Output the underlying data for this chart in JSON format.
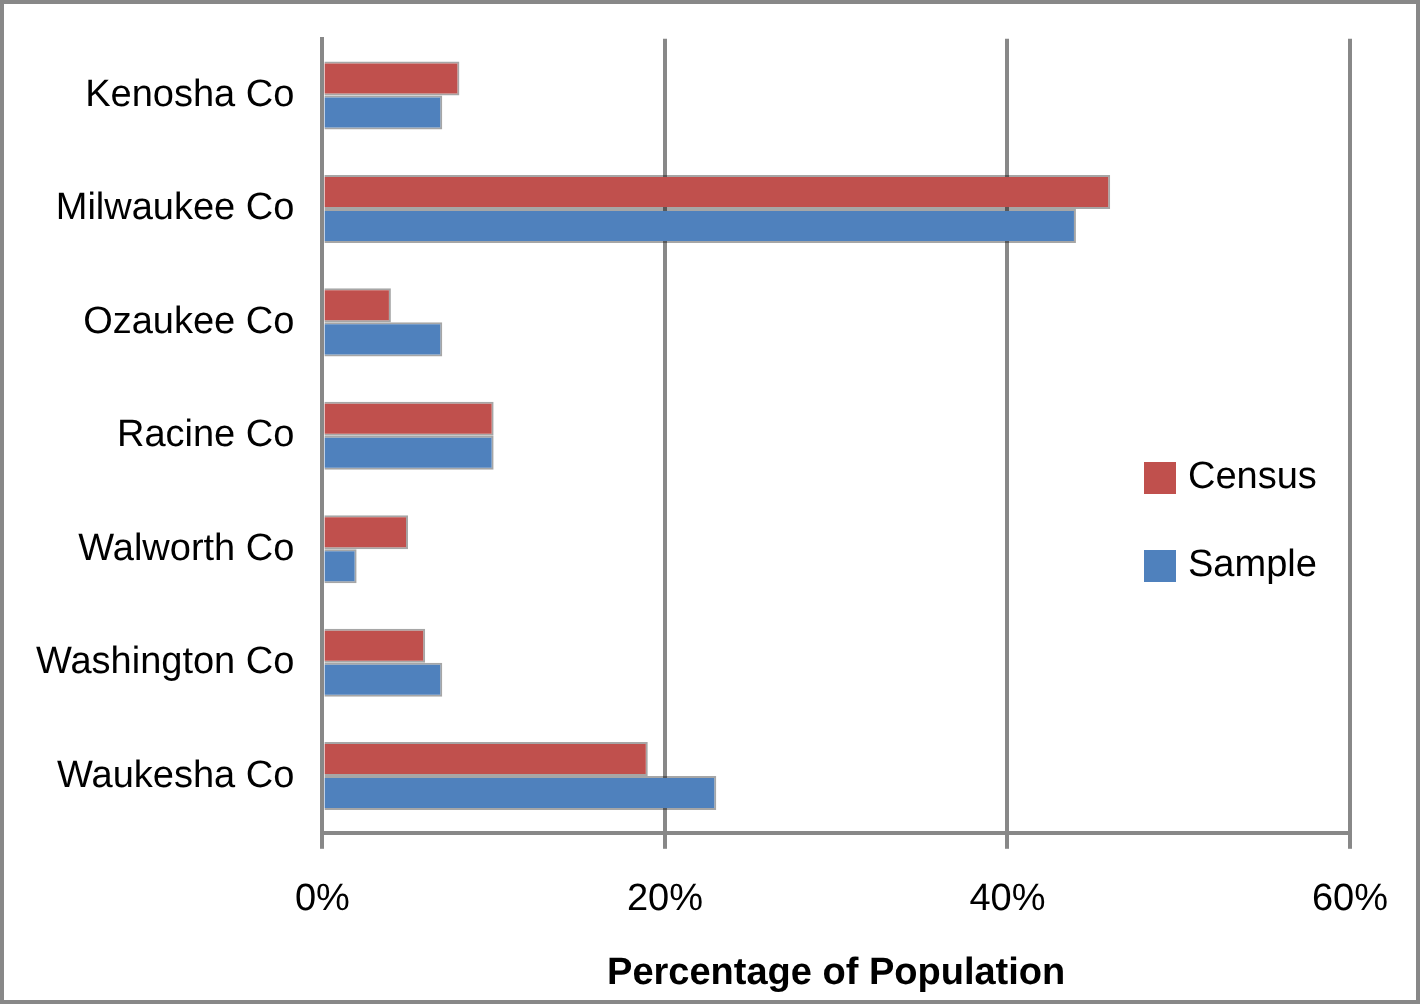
{
  "chart_data": {
    "type": "bar",
    "orientation": "horizontal",
    "xlabel": "Percentage of Population",
    "categories": [
      "Kenosha Co",
      "Milwaukee Co",
      "Ozaukee Co",
      "Racine Co",
      "Walworth Co",
      "Washington Co",
      "Waukesha Co"
    ],
    "series": [
      {
        "name": "Census",
        "color": "#c0504d",
        "values": [
          8,
          46,
          4,
          10,
          5,
          6,
          19
        ]
      },
      {
        "name": "Sample",
        "color": "#4f81bd",
        "values": [
          7,
          44,
          7,
          10,
          2,
          7,
          23
        ]
      }
    ],
    "xlim": [
      0,
      60
    ],
    "xticks": [
      {
        "value": 0,
        "label": "0%"
      },
      {
        "value": 20,
        "label": "20%"
      },
      {
        "value": 40,
        "label": "40%"
      },
      {
        "value": 60,
        "label": "60%"
      }
    ],
    "grid": "x",
    "legend": "right"
  }
}
